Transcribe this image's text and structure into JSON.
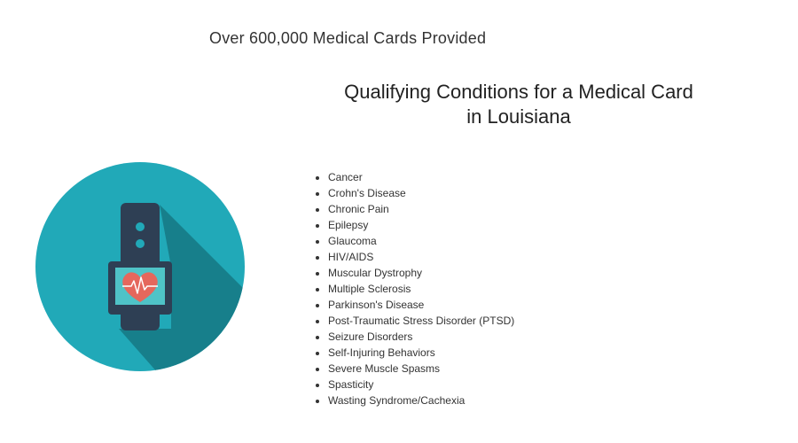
{
  "tagline": "Over 600,000 Medical Cards Provided",
  "heading": {
    "line1": "Qualifying Conditions for a Medical Card",
    "line2": "in Louisiana"
  },
  "illustration": {
    "icon": "smartwatch-heart-icon",
    "colors": {
      "circle": "#21a9b8",
      "shadow": "#177f8b",
      "watch": "#2e3f54",
      "screen": "#4fc3c7",
      "heart": "#e5675c"
    }
  },
  "conditions": [
    "Cancer",
    "Crohn's Disease",
    "Chronic Pain",
    "Epilepsy",
    "Glaucoma",
    "HIV/AIDS",
    "Muscular Dystrophy",
    "Multiple Sclerosis",
    "Parkinson's Disease",
    "Post-Traumatic Stress Disorder (PTSD)",
    "Seizure Disorders",
    "Self-Injuring Behaviors",
    "Severe Muscle Spasms",
    "Spasticity",
    "Wasting Syndrome/Cachexia"
  ]
}
